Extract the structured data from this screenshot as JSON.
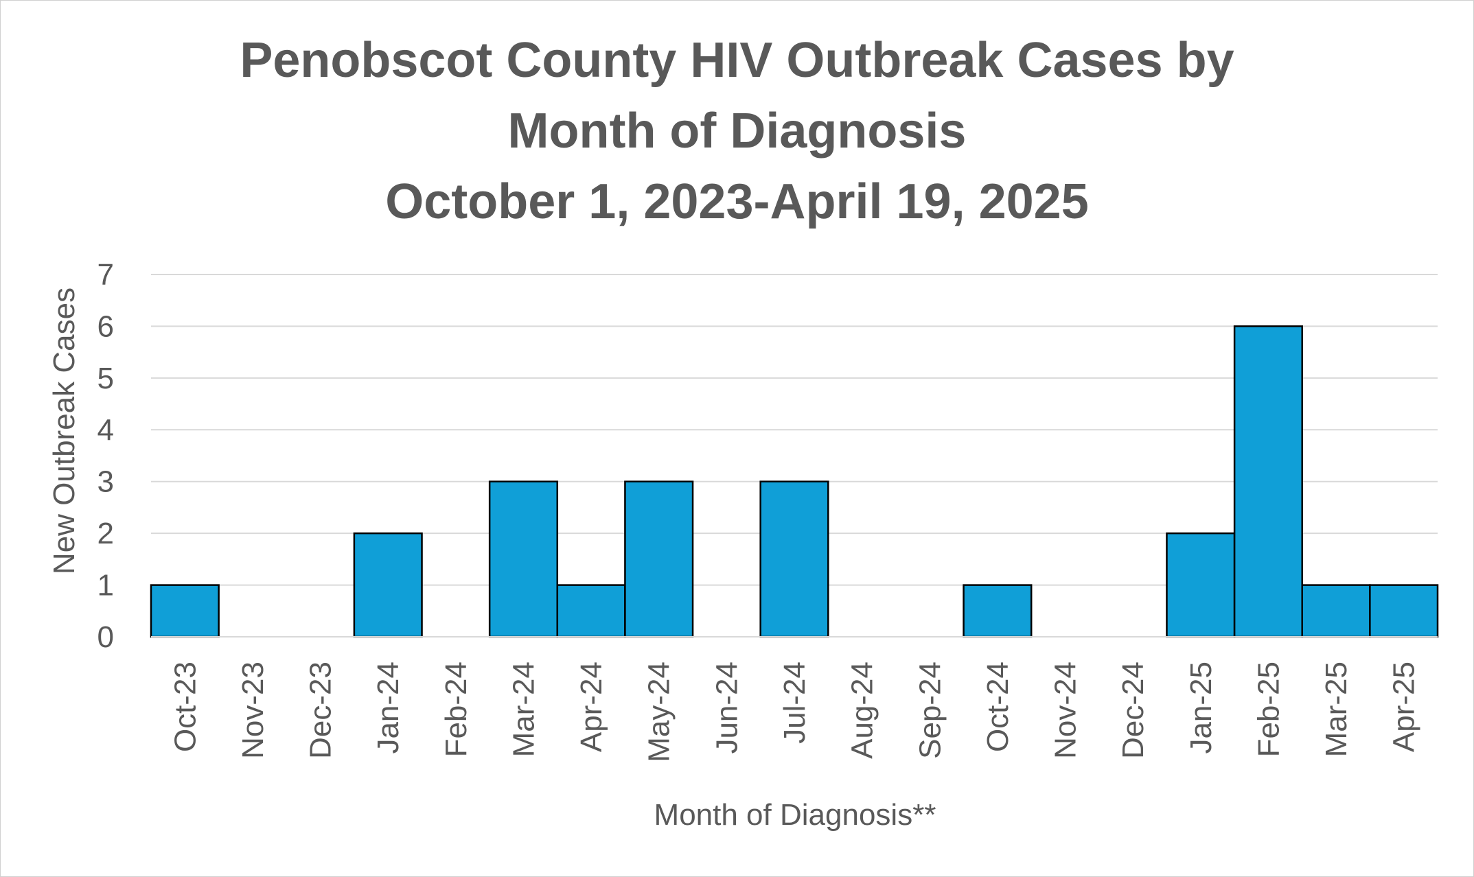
{
  "chart_data": {
    "type": "bar",
    "title": "Penobscot County HIV Outbreak Cases by Month of Diagnosis",
    "title_lines": [
      "Penobscot County HIV Outbreak Cases by",
      "Month of Diagnosis",
      "October 1, 2023-April 19, 2025"
    ],
    "subtitle": "October 1, 2023-April 19, 2025",
    "xlabel": "Month of Diagnosis**",
    "ylabel": "New Outbreak Cases",
    "categories": [
      "Oct-23",
      "Nov-23",
      "Dec-23",
      "Jan-24",
      "Feb-24",
      "Mar-24",
      "Apr-24",
      "May-24",
      "Jun-24",
      "Jul-24",
      "Aug-24",
      "Sep-24",
      "Oct-24",
      "Nov-24",
      "Dec-24",
      "Jan-25",
      "Feb-25",
      "Mar-25",
      "Apr-25"
    ],
    "values": [
      1,
      0,
      0,
      2,
      0,
      3,
      1,
      3,
      0,
      3,
      0,
      0,
      1,
      0,
      0,
      2,
      6,
      1,
      1
    ],
    "ylim": [
      0,
      7
    ],
    "yticks": [
      0,
      1,
      2,
      3,
      4,
      5,
      6,
      7
    ],
    "grid": true,
    "legend": "none",
    "bar_color": "#109fd7",
    "bar_edge_color": "#000000",
    "grid_color": "#d9d9d9",
    "text_color": "#595959"
  }
}
